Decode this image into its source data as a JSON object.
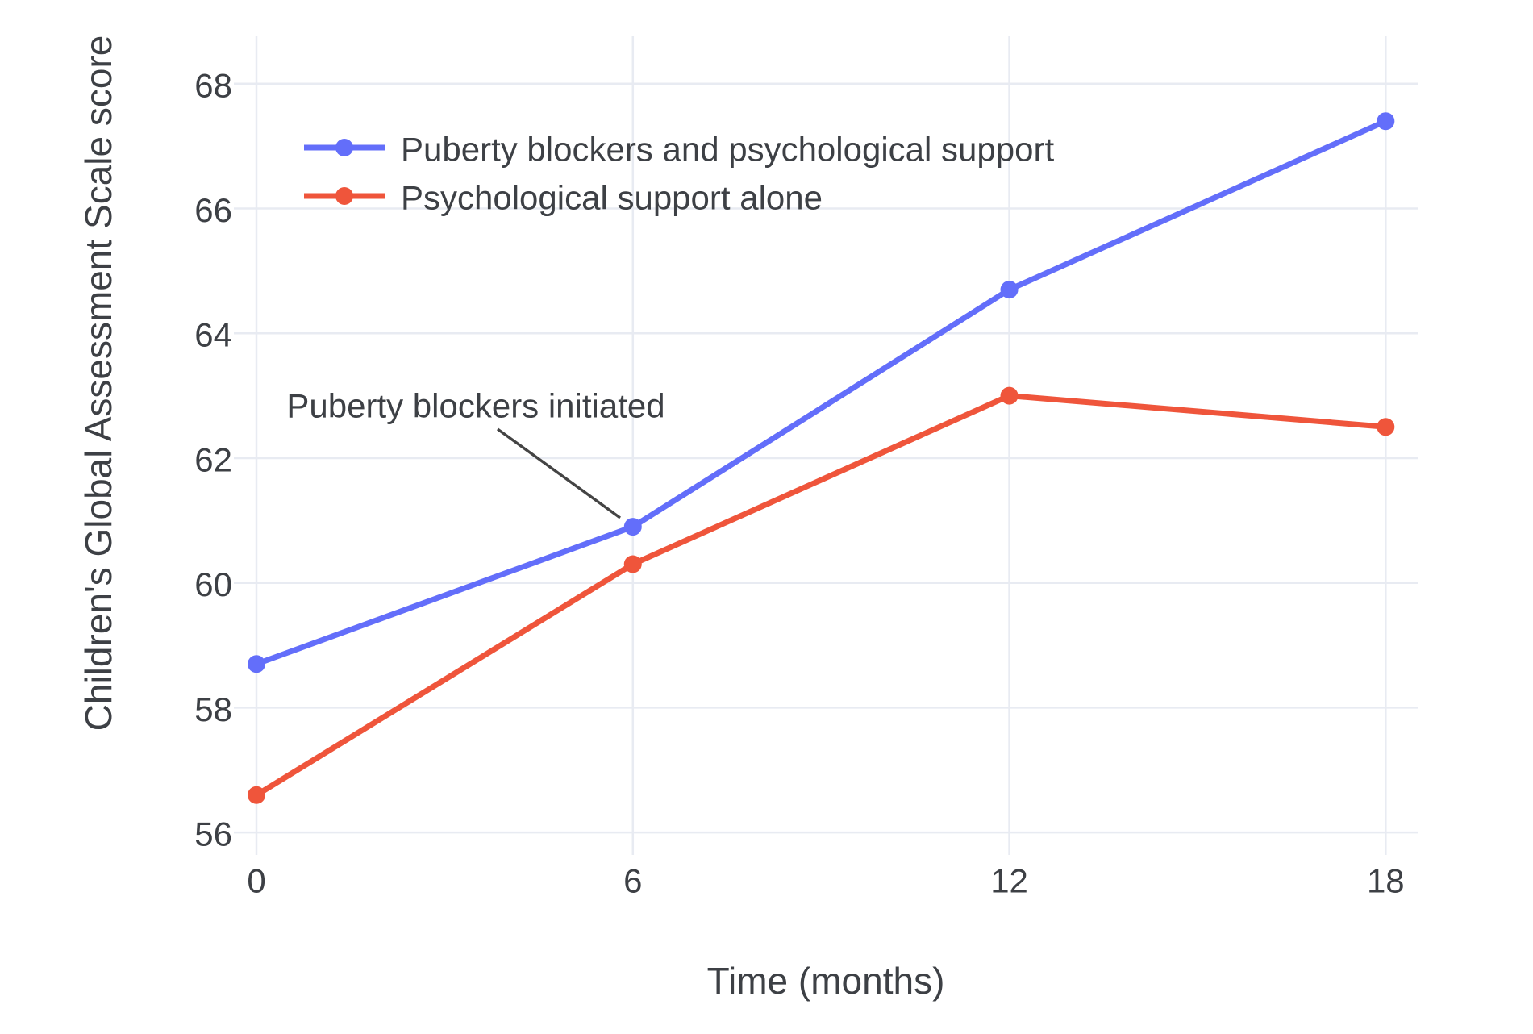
{
  "chart_data": {
    "type": "line",
    "title": "",
    "x": [
      0,
      6,
      12,
      18
    ],
    "x_ticks": [
      "0",
      "6",
      "12",
      "18"
    ],
    "y_ticks": [
      "56",
      "58",
      "60",
      "62",
      "64",
      "66",
      "68"
    ],
    "xlabel": "Time (months)",
    "ylabel": "Children's Global Assessment Scale score",
    "xlim": [
      -0.36,
      18.51
    ],
    "ylim": [
      55.64,
      68.76
    ],
    "grid": true,
    "legend_position": "inside-top-left",
    "series": [
      {
        "name": "Puberty blockers and psychological support",
        "color": "#636EFA",
        "marker": "circle",
        "values": [
          58.7,
          60.9,
          64.7,
          67.4
        ]
      },
      {
        "name": "Psychological support alone",
        "color": "#EF553B",
        "marker": "circle",
        "values": [
          56.6,
          60.3,
          63.0,
          62.5
        ]
      }
    ],
    "annotation": {
      "text": "Puberty blockers initiated",
      "target_series": "Puberty blockers and psychological support",
      "target_x": 6,
      "target_y": 60.9
    }
  },
  "style": {
    "text_color": "#3D4045",
    "grid_color": "#E8EBF2",
    "annotation_line_color": "#444444",
    "series_blue": "#636EFA",
    "series_red": "#EF553B",
    "background": "#FFFFFF"
  }
}
